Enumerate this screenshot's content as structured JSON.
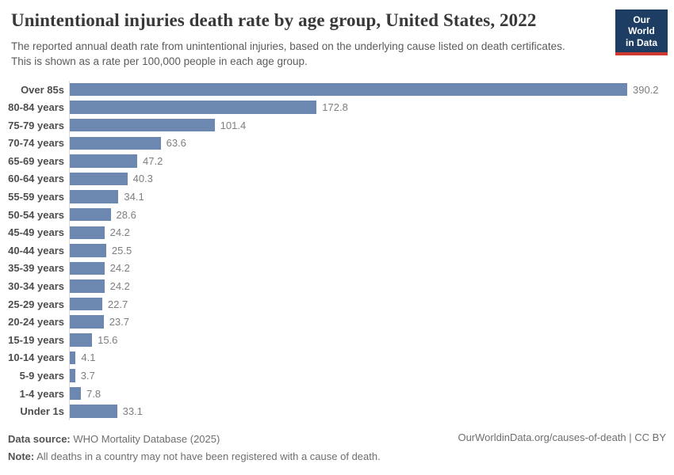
{
  "header": {
    "title": "Unintentional injuries death rate by age group, United States, 2022",
    "subtitle": "The reported annual death rate from unintentional injuries, based on the underlying cause listed on death certificates. This is shown as a rate per 100,000 people in each age group.",
    "logo": {
      "line1": "Our World",
      "line2": "in Data"
    }
  },
  "chart_data": {
    "type": "bar",
    "orientation": "horizontal",
    "title": "Unintentional injuries death rate by age group, United States, 2022",
    "unit": "deaths per 100,000 people",
    "categories": [
      "Over 85s",
      "80-84 years",
      "75-79 years",
      "70-74 years",
      "65-69 years",
      "60-64 years",
      "55-59 years",
      "50-54 years",
      "45-49 years",
      "40-44 years",
      "35-39 years",
      "30-34 years",
      "25-29 years",
      "20-24 years",
      "15-19 years",
      "10-14 years",
      "5-9 years",
      "1-4 years",
      "Under 1s"
    ],
    "values": [
      390.2,
      172.8,
      101.4,
      63.6,
      47.2,
      40.3,
      34.1,
      28.6,
      24.2,
      25.5,
      24.2,
      24.2,
      22.7,
      23.7,
      15.6,
      4.1,
      3.7,
      7.8,
      33.1
    ],
    "value_labels": [
      "390.2",
      "172.8",
      "101.4",
      "63.6",
      "47.2",
      "40.3",
      "34.1",
      "28.6",
      "24.2",
      "25.5",
      "24.2",
      "24.2",
      "22.7",
      "23.7",
      "15.6",
      "4.1",
      "3.7",
      "7.8",
      "33.1"
    ],
    "xlim": [
      0,
      390.2
    ],
    "grid": false,
    "legend": "none",
    "bar_color": "#6c87b0",
    "axis_line_color": "#dcdcdc"
  },
  "footer": {
    "data_source_label": "Data source:",
    "data_source": " WHO Mortality Database (2025)",
    "note_label": "Note:",
    "note": " All deaths in a country may not have been registered with a cause of death.",
    "attribution": "OurWorldinData.org/causes-of-death | CC BY"
  }
}
